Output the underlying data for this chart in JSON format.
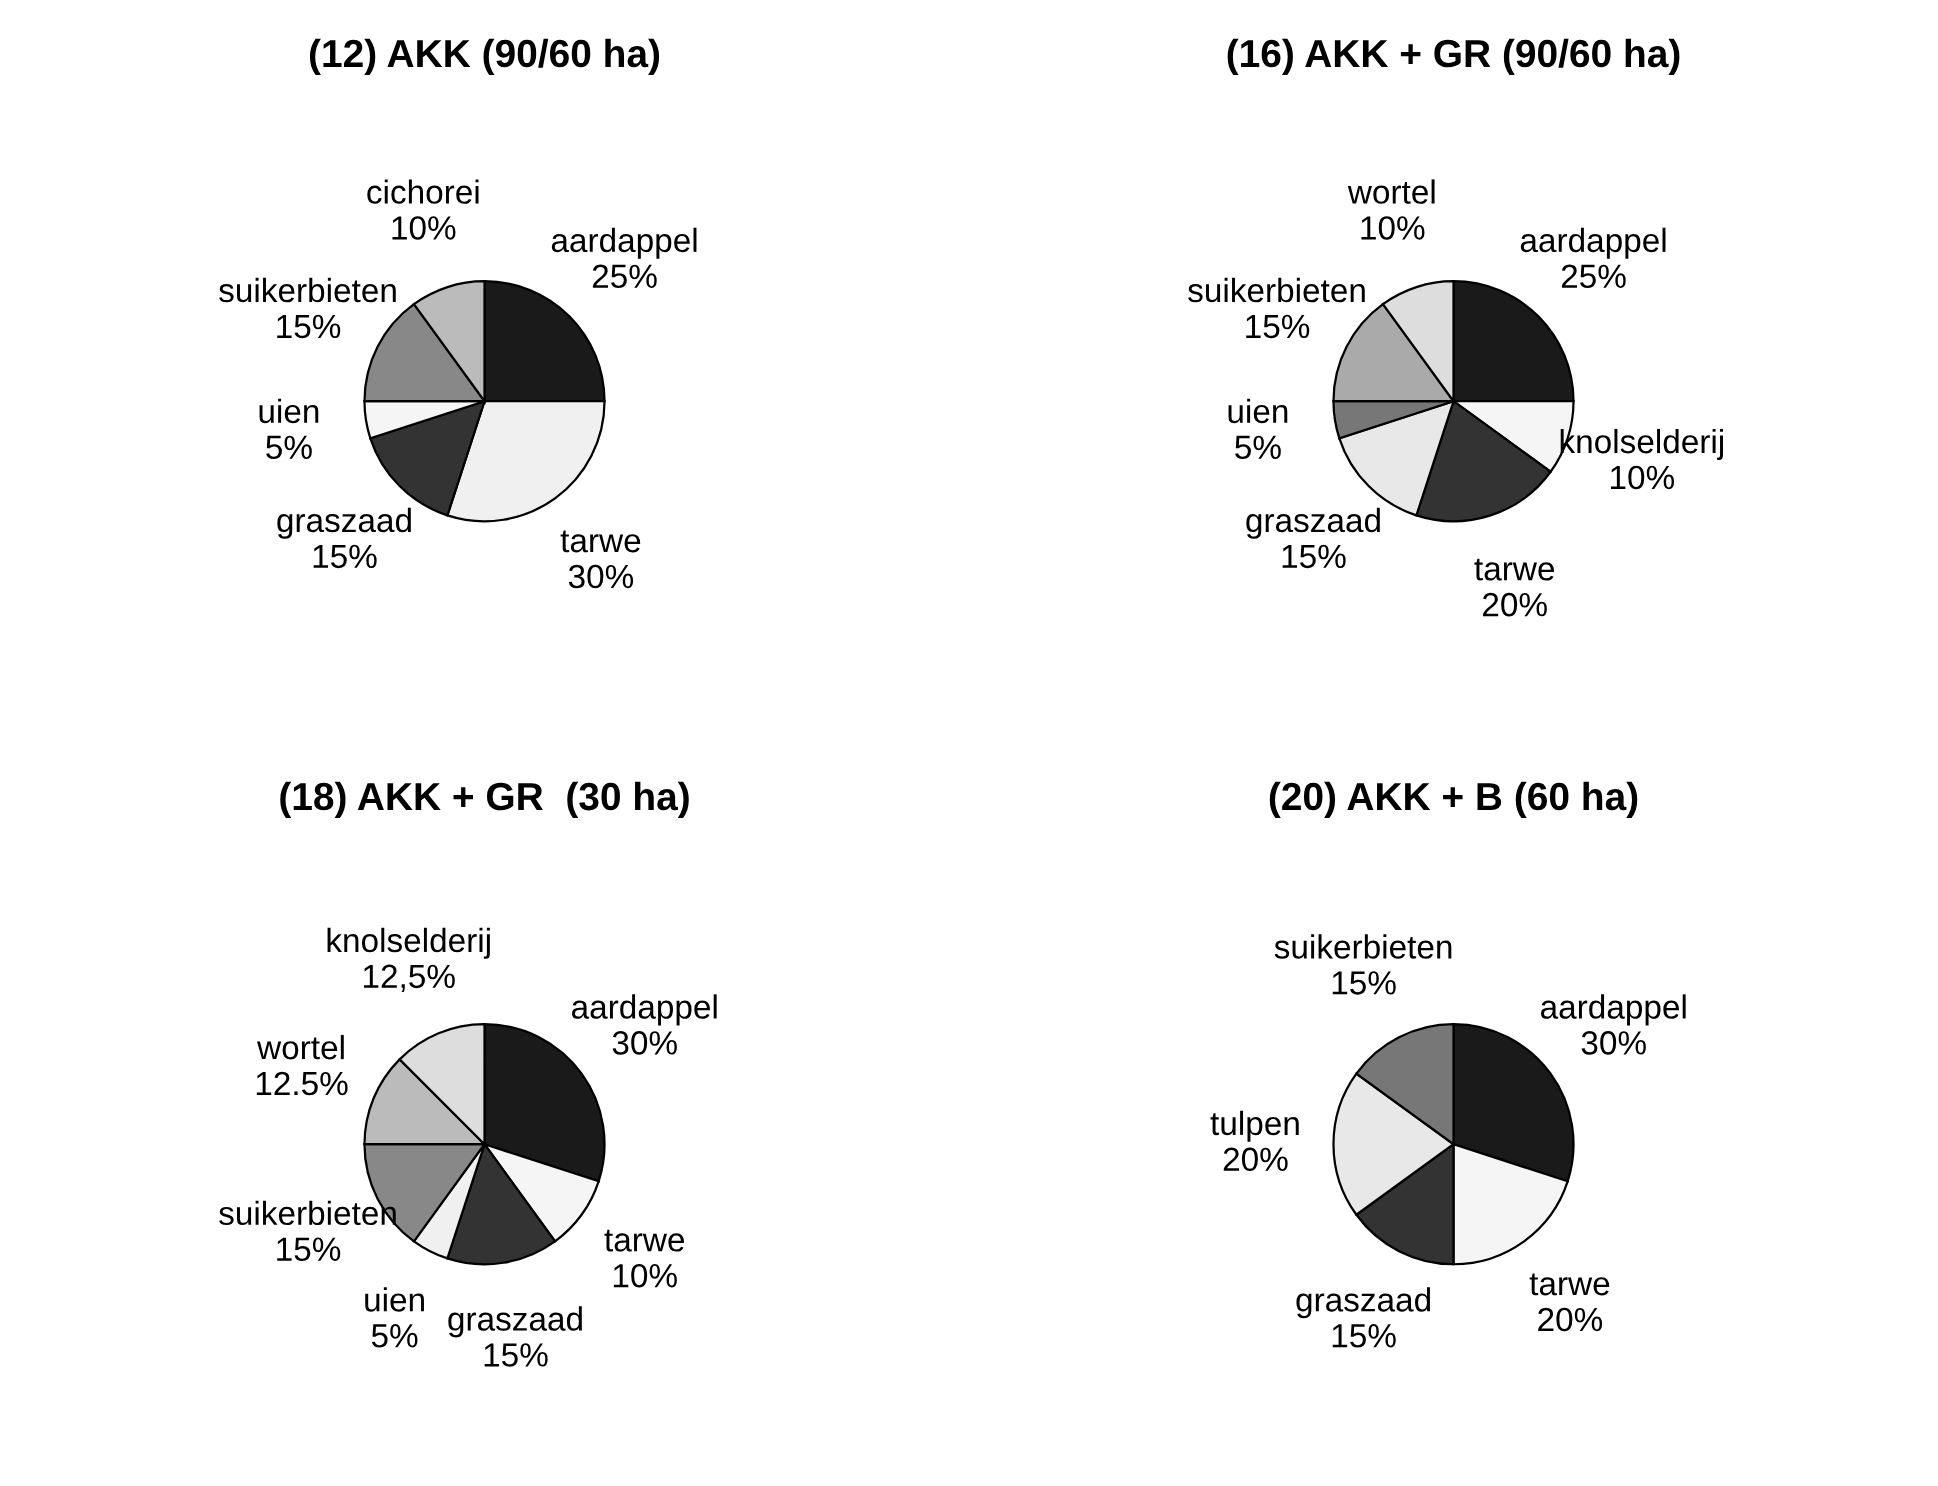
{
  "chart_data": [
    {
      "type": "pie",
      "title": "(12) AKK (90/60 ha)",
      "categories": [
        "aardappel",
        "tarwe",
        "graszaad",
        "uien",
        "suikerbieten",
        "cichorei"
      ],
      "values": [
        25,
        30,
        15,
        5,
        15,
        10
      ],
      "value_labels": [
        "25%",
        "30%",
        "15%",
        "5%",
        "15%",
        "10%"
      ],
      "colors": [
        "#1a1a1a",
        "#f0f0f0",
        "#333333",
        "#f5f5f5",
        "#888888",
        "#bbbbbb"
      ]
    },
    {
      "type": "pie",
      "title": "(16) AKK + GR (90/60 ha)",
      "categories": [
        "aardappel",
        "knolselderij",
        "tarwe",
        "graszaad",
        "uien",
        "suikerbieten",
        "wortel"
      ],
      "values": [
        25,
        10,
        20,
        15,
        5,
        15,
        10
      ],
      "value_labels": [
        "25%",
        "10%",
        "20%",
        "15%",
        "5%",
        "15%",
        "10%"
      ],
      "colors": [
        "#1a1a1a",
        "#f5f5f5",
        "#333333",
        "#e8e8e8",
        "#777777",
        "#aaaaaa",
        "#dddddd"
      ]
    },
    {
      "type": "pie",
      "title": "(18) AKK + GR  (30 ha)",
      "categories": [
        "aardappel",
        "tarwe",
        "graszaad",
        "uien",
        "suikerbieten",
        "wortel",
        "knolselderij"
      ],
      "values": [
        30,
        10,
        15,
        5,
        15,
        12.5,
        12.5
      ],
      "value_labels": [
        "30%",
        "10%",
        "15%",
        "5%",
        "15%",
        "12.5%",
        "12,5%"
      ],
      "colors": [
        "#1a1a1a",
        "#f5f5f5",
        "#333333",
        "#f0f0f0",
        "#888888",
        "#bbbbbb",
        "#dddddd"
      ]
    },
    {
      "type": "pie",
      "title": "(20) AKK + B (60 ha)",
      "categories": [
        "aardappel",
        "tarwe",
        "graszaad",
        "tulpen",
        "suikerbieten"
      ],
      "values": [
        30,
        20,
        15,
        20,
        15
      ],
      "value_labels": [
        "30%",
        "20%",
        "15%",
        "20%",
        "15%"
      ],
      "colors": [
        "#1a1a1a",
        "#f5f5f5",
        "#333333",
        "#e8e8e8",
        "#777777"
      ]
    }
  ]
}
